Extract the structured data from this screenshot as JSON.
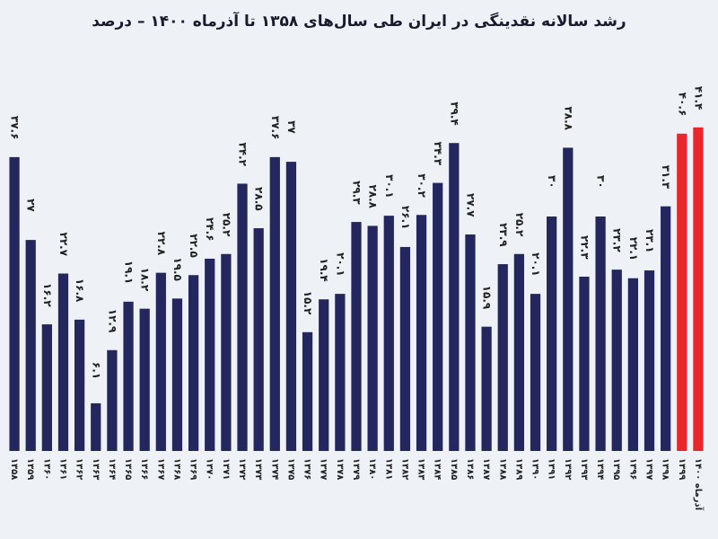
{
  "chart_data": {
    "type": "bar",
    "title": "رشد سالانه نقدینگی در ایران طی سال‌های ۱۳۵۸ تا آذرماه ۱۴۰۰ – درصد",
    "xlabel": "",
    "ylabel": "",
    "ylim": [
      0,
      40
    ],
    "grid": false,
    "colors": {
      "default": "#23275e",
      "highlight": "#e8262b",
      "background": "#eef1f6"
    },
    "categories": [
      "۱۳۵۸",
      "۱۳۵۹",
      "۱۳۶۰",
      "۱۳۶۱",
      "۱۳۶۲",
      "۱۳۶۳",
      "۱۳۶۴",
      "۱۳۶۵",
      "۱۳۶۶",
      "۱۳۶۷",
      "۱۳۶۸",
      "۱۳۶۹",
      "۱۳۷۰",
      "۱۳۷۱",
      "۱۳۷۲",
      "۱۳۷۳",
      "۱۳۷۴",
      "۱۳۷۵",
      "۱۳۷۶",
      "۱۳۷۷",
      "۱۳۷۸",
      "۱۳۷۹",
      "۱۳۸۰",
      "۱۳۸۱",
      "۱۳۸۲",
      "۱۳۸۳",
      "۱۳۸۴",
      "۱۳۸۵",
      "۱۳۸۶",
      "۱۳۸۷",
      "۱۳۸۸",
      "۱۳۸۹",
      "۱۳۹۰",
      "۱۳۹۱",
      "۱۳۹۲",
      "۱۳۹۳",
      "۱۳۹۴",
      "۱۳۹۵",
      "۱۳۹۶",
      "۱۳۹۷",
      "۱۳۹۸",
      "۱۳۹۹",
      "آذرماه ۱۴۰۰"
    ],
    "value_labels": [
      "۳۷.۶",
      "۲۷",
      "۱۶.۲",
      "۲۲.۷",
      "۱۶.۸",
      "۶.۱",
      "۱۲.۹",
      "۱۹.۱",
      "۱۸.۲",
      "۲۲.۸",
      "۱۹.۵",
      "۲۲.۵",
      "۲۴.۶",
      "۲۵.۲",
      "۳۴.۲",
      "۲۸.۵",
      "۳۷.۶",
      "۳۷",
      "۱۵.۲",
      "۱۹.۴",
      "۲۰.۱",
      "۲۹.۳",
      "۲۸.۸",
      "۳۰.۱",
      "۲۶.۱",
      "۳۰.۲",
      "۳۴.۳",
      "۳۹.۴",
      "۲۷.۷",
      "۱۵.۹",
      "۲۳.۹",
      "۲۵.۲",
      "۲۰.۱",
      "۳۰",
      "۳۸.۸",
      "۲۲.۳",
      "۳۰",
      "۲۳.۲",
      "۲۲.۱",
      "۲۳.۱",
      "۳۱.۳",
      "۴۰.۶",
      "۴۱.۴"
    ],
    "values": [
      37.6,
      27,
      16.2,
      22.7,
      16.8,
      6.1,
      12.9,
      19.1,
      18.2,
      22.8,
      19.5,
      22.5,
      24.6,
      25.2,
      34.2,
      28.5,
      37.6,
      37,
      15.2,
      19.4,
      20.1,
      29.3,
      28.8,
      30.1,
      26.1,
      30.2,
      34.3,
      39.4,
      27.7,
      15.9,
      23.9,
      25.2,
      20.1,
      30,
      38.8,
      22.3,
      30,
      23.2,
      22.1,
      23.1,
      31.3,
      40.6,
      41.4
    ],
    "highlight_indices": [
      41,
      42
    ]
  }
}
